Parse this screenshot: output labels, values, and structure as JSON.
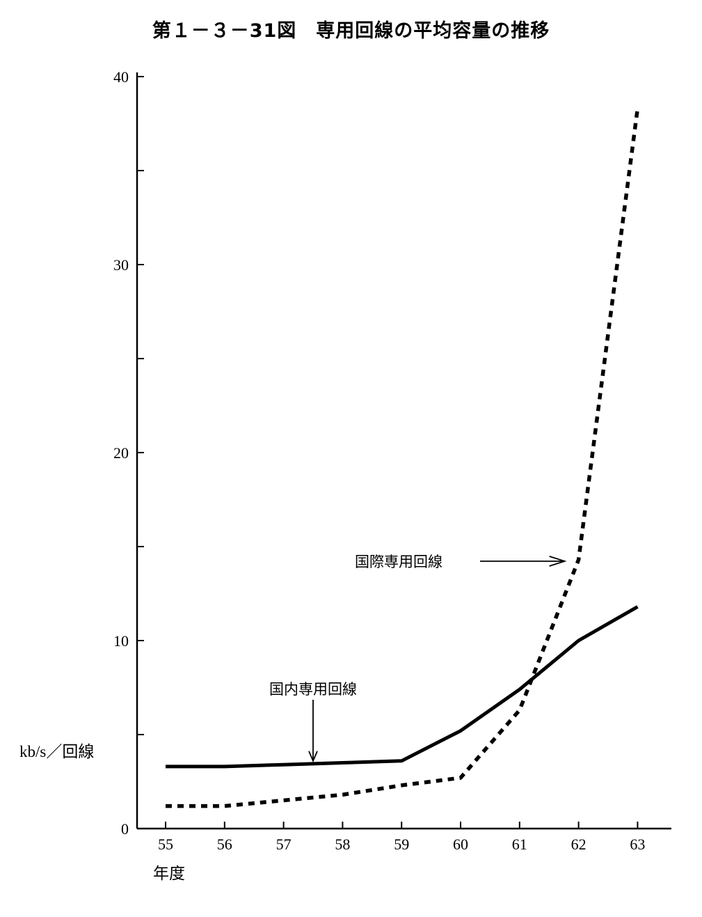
{
  "chart_data": {
    "type": "line",
    "title": "第１－３－31図　専用回線の平均容量の推移",
    "ylabel": "kb/s／回線",
    "xlabel": "年度",
    "categories": [
      "55",
      "56",
      "57",
      "58",
      "59",
      "60",
      "61",
      "62",
      "63"
    ],
    "ylim": [
      0,
      40
    ],
    "yticks": [
      0,
      10,
      20,
      30,
      40
    ],
    "grid": false,
    "series": [
      {
        "name": "国内専用回線",
        "style": "solid",
        "values": [
          3.3,
          3.3,
          3.4,
          3.5,
          3.6,
          5.2,
          7.4,
          10.0,
          11.8
        ]
      },
      {
        "name": "国際専用回線",
        "style": "dotted",
        "values": [
          1.2,
          1.2,
          1.5,
          1.8,
          2.3,
          2.7,
          6.3,
          14.3,
          38.3
        ]
      }
    ],
    "annotations": [
      {
        "text": "国内専用回線",
        "target_series": 0,
        "target_x": "57.5",
        "arrow": "down"
      },
      {
        "text": "国際専用回線",
        "target_series": 1,
        "target_x": "62",
        "arrow": "right"
      }
    ]
  }
}
